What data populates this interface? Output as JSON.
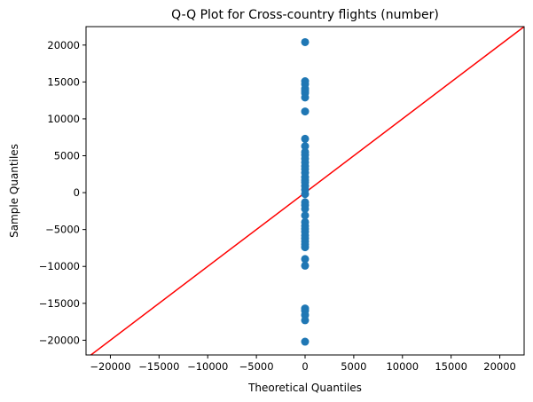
{
  "chart_data": {
    "type": "scatter",
    "title": "Q-Q Plot for Cross-country flights (number)",
    "xlabel": "Theoretical Quantiles",
    "ylabel": "Sample Quantiles",
    "xlim": [
      -22500,
      22500
    ],
    "ylim": [
      -22000,
      22500
    ],
    "xticks": [
      -20000,
      -15000,
      -10000,
      -5000,
      0,
      5000,
      10000,
      15000,
      20000
    ],
    "yticks": [
      -20000,
      -15000,
      -10000,
      -5000,
      0,
      5000,
      10000,
      15000,
      20000
    ],
    "grid": false,
    "points": [
      {
        "x": -2.0,
        "y": -20200
      },
      {
        "x": -1.6,
        "y": -17300
      },
      {
        "x": -1.3,
        "y": -16600
      },
      {
        "x": -1.1,
        "y": -16000
      },
      {
        "x": -1.0,
        "y": -15700
      },
      {
        "x": -0.9,
        "y": -9900
      },
      {
        "x": -0.8,
        "y": -9000
      },
      {
        "x": -0.7,
        "y": -7400
      },
      {
        "x": -0.6,
        "y": -7000
      },
      {
        "x": -0.55,
        "y": -6600
      },
      {
        "x": -0.5,
        "y": -6200
      },
      {
        "x": -0.45,
        "y": -5800
      },
      {
        "x": -0.4,
        "y": -5300
      },
      {
        "x": -0.35,
        "y": -4900
      },
      {
        "x": -0.3,
        "y": -4500
      },
      {
        "x": -0.25,
        "y": -4000
      },
      {
        "x": -0.2,
        "y": -3100
      },
      {
        "x": -0.15,
        "y": -2200
      },
      {
        "x": -0.1,
        "y": -1700
      },
      {
        "x": -0.05,
        "y": -1300
      },
      {
        "x": 0.0,
        "y": -200
      },
      {
        "x": 0.05,
        "y": 400
      },
      {
        "x": 0.1,
        "y": 900
      },
      {
        "x": 0.15,
        "y": 1400
      },
      {
        "x": 0.2,
        "y": 1700
      },
      {
        "x": 0.25,
        "y": 2100
      },
      {
        "x": 0.3,
        "y": 2700
      },
      {
        "x": 0.35,
        "y": 3200
      },
      {
        "x": 0.4,
        "y": 3600
      },
      {
        "x": 0.45,
        "y": 4100
      },
      {
        "x": 0.5,
        "y": 4600
      },
      {
        "x": 0.6,
        "y": 5100
      },
      {
        "x": 0.7,
        "y": 5500
      },
      {
        "x": 0.8,
        "y": 6300
      },
      {
        "x": 0.9,
        "y": 7300
      },
      {
        "x": 1.0,
        "y": 11000
      },
      {
        "x": 1.1,
        "y": 12900
      },
      {
        "x": 1.2,
        "y": 13500
      },
      {
        "x": 1.3,
        "y": 13800
      },
      {
        "x": 1.4,
        "y": 14100
      },
      {
        "x": 1.5,
        "y": 14700
      },
      {
        "x": 1.7,
        "y": 15100
      },
      {
        "x": 2.0,
        "y": 20400
      }
    ],
    "reference_line": {
      "slope": 1,
      "intercept": 0,
      "color": "#ff0000"
    },
    "marker_color": "#1f77b4"
  }
}
